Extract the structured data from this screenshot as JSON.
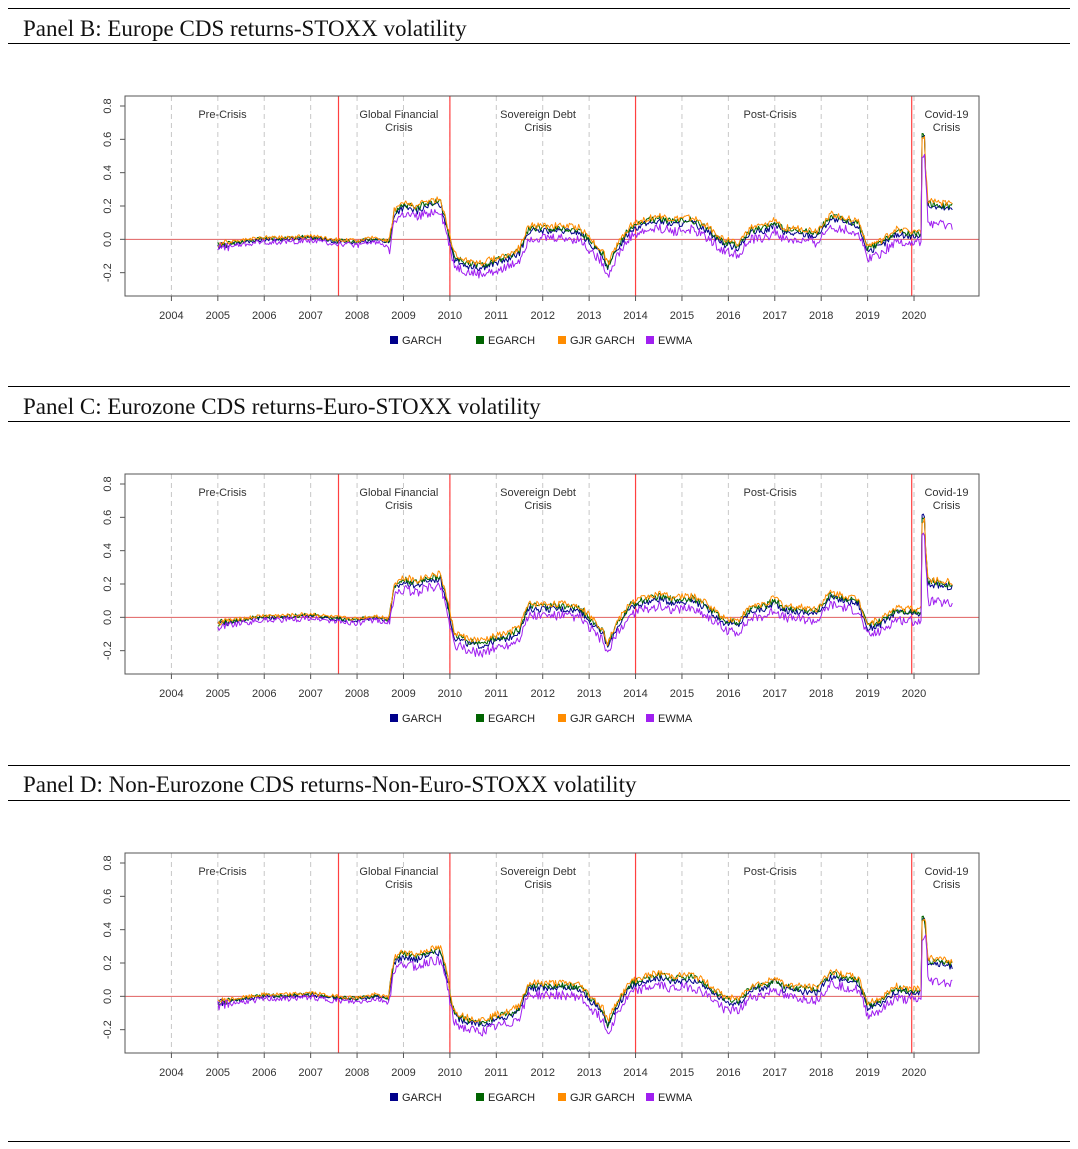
{
  "panels": [
    {
      "title": "Panel B: Europe CDS returns-STOXX volatility",
      "seed": 11,
      "peak": 0.63,
      "crisisShift": 0
    },
    {
      "title": "Panel C: Eurozone CDS returns-Euro-STOXX volatility",
      "seed": 23,
      "peak": 0.61,
      "crisisShift": 0.02
    },
    {
      "title": "Panel D: Non-Eurozone CDS returns-Non-Euro-STOXX volatility",
      "seed": 37,
      "peak": 0.48,
      "crisisShift": 0.05
    }
  ],
  "chart_data": {
    "type": "line",
    "x_ticks": [
      "2004",
      "2005",
      "2006",
      "2007",
      "2008",
      "2009",
      "2010",
      "2011",
      "2012",
      "2013",
      "2014",
      "2015",
      "2016",
      "2017",
      "2018",
      "2019",
      "2020"
    ],
    "y_ticks": [
      "-0.2",
      "0.0",
      "0.2",
      "0.4",
      "0.6",
      "0.8"
    ],
    "ylim": [
      -0.34,
      0.86
    ],
    "xlim": [
      2003,
      2021.4
    ],
    "periods": [
      {
        "label1": "Pre-Crisis",
        "label2": "",
        "x": 2005.1
      },
      {
        "label1": "Global Financial",
        "label2": "Crisis",
        "x": 2008.9
      },
      {
        "label1": "Sovereign Debt",
        "label2": "Crisis",
        "x": 2011.9
      },
      {
        "label1": "Post-Crisis",
        "label2": "",
        "x": 2016.9
      },
      {
        "label1": "Covid-19",
        "label2": "Crisis",
        "x": 2020.7
      }
    ],
    "breaks": [
      2007.6,
      2010.0,
      2014.0,
      2019.95
    ],
    "series": [
      {
        "name": "GARCH",
        "color": "#00008B"
      },
      {
        "name": "EGARCH",
        "color": "#006400"
      },
      {
        "name": "GJR GARCH",
        "color": "#FF8C00"
      },
      {
        "name": "EWMA",
        "color": "#A020F0"
      }
    ],
    "path_anchors": [
      [
        2005.0,
        -0.04
      ],
      [
        2005.5,
        -0.02
      ],
      [
        2006.0,
        0.0
      ],
      [
        2006.5,
        0.0
      ],
      [
        2007.0,
        0.01
      ],
      [
        2007.5,
        -0.01
      ],
      [
        2008.0,
        -0.02
      ],
      [
        2008.4,
        0.0
      ],
      [
        2008.7,
        -0.02
      ],
      [
        2008.8,
        0.15
      ],
      [
        2009.0,
        0.19
      ],
      [
        2009.3,
        0.17
      ],
      [
        2009.5,
        0.2
      ],
      [
        2009.8,
        0.21
      ],
      [
        2009.95,
        0.05
      ],
      [
        2010.1,
        -0.12
      ],
      [
        2010.4,
        -0.16
      ],
      [
        2010.7,
        -0.17
      ],
      [
        2011.0,
        -0.14
      ],
      [
        2011.3,
        -0.12
      ],
      [
        2011.5,
        -0.08
      ],
      [
        2011.7,
        0.05
      ],
      [
        2012.0,
        0.05
      ],
      [
        2012.4,
        0.05
      ],
      [
        2012.8,
        0.04
      ],
      [
        2013.0,
        -0.02
      ],
      [
        2013.3,
        -0.1
      ],
      [
        2013.4,
        -0.18
      ],
      [
        2013.6,
        -0.06
      ],
      [
        2013.9,
        0.06
      ],
      [
        2014.2,
        0.09
      ],
      [
        2014.5,
        0.11
      ],
      [
        2014.8,
        0.09
      ],
      [
        2015.2,
        0.1
      ],
      [
        2015.5,
        0.06
      ],
      [
        2015.9,
        -0.03
      ],
      [
        2016.2,
        -0.05
      ],
      [
        2016.5,
        0.04
      ],
      [
        2016.8,
        0.05
      ],
      [
        2017.0,
        0.09
      ],
      [
        2017.2,
        0.04
      ],
      [
        2017.6,
        0.03
      ],
      [
        2017.9,
        0.02
      ],
      [
        2018.2,
        0.12
      ],
      [
        2018.5,
        0.1
      ],
      [
        2018.8,
        0.08
      ],
      [
        2019.0,
        -0.07
      ],
      [
        2019.3,
        -0.04
      ],
      [
        2019.6,
        0.03
      ],
      [
        2019.9,
        0.02
      ],
      [
        2020.15,
        0.02
      ],
      [
        2020.2,
        0.6
      ],
      [
        2020.3,
        0.2
      ],
      [
        2020.8,
        0.18
      ]
    ]
  },
  "legend": [
    {
      "label": "GARCH",
      "color": "#00008B"
    },
    {
      "label": "EGARCH",
      "color": "#006400"
    },
    {
      "label": "GJR GARCH",
      "color": "#FF8C00"
    },
    {
      "label": "EWMA",
      "color": "#A020F0"
    }
  ]
}
